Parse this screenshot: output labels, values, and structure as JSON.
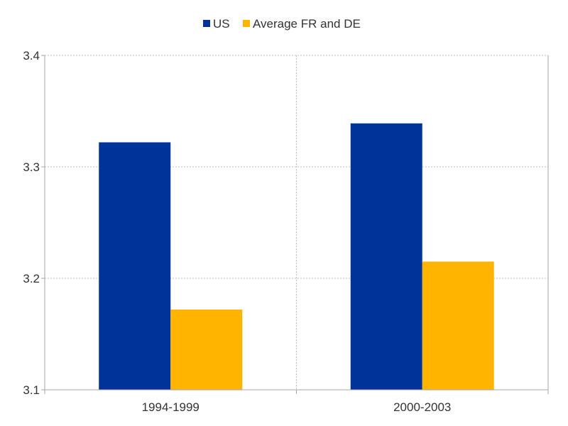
{
  "chart_data": {
    "type": "bar",
    "title": "",
    "xlabel": "",
    "ylabel": "",
    "categories": [
      "1994-1999",
      "2000-2003"
    ],
    "series": [
      {
        "name": "US",
        "color": "#003399",
        "values": [
          3.322,
          3.339
        ]
      },
      {
        "name": "Average FR and DE",
        "color": "#FFB400",
        "values": [
          3.172,
          3.215
        ]
      }
    ],
    "ylim": [
      3.1,
      3.4
    ],
    "yticks": [
      "3.1",
      "3.2",
      "3.3",
      "3.4"
    ],
    "grid": true,
    "legend_position": "top-center"
  }
}
